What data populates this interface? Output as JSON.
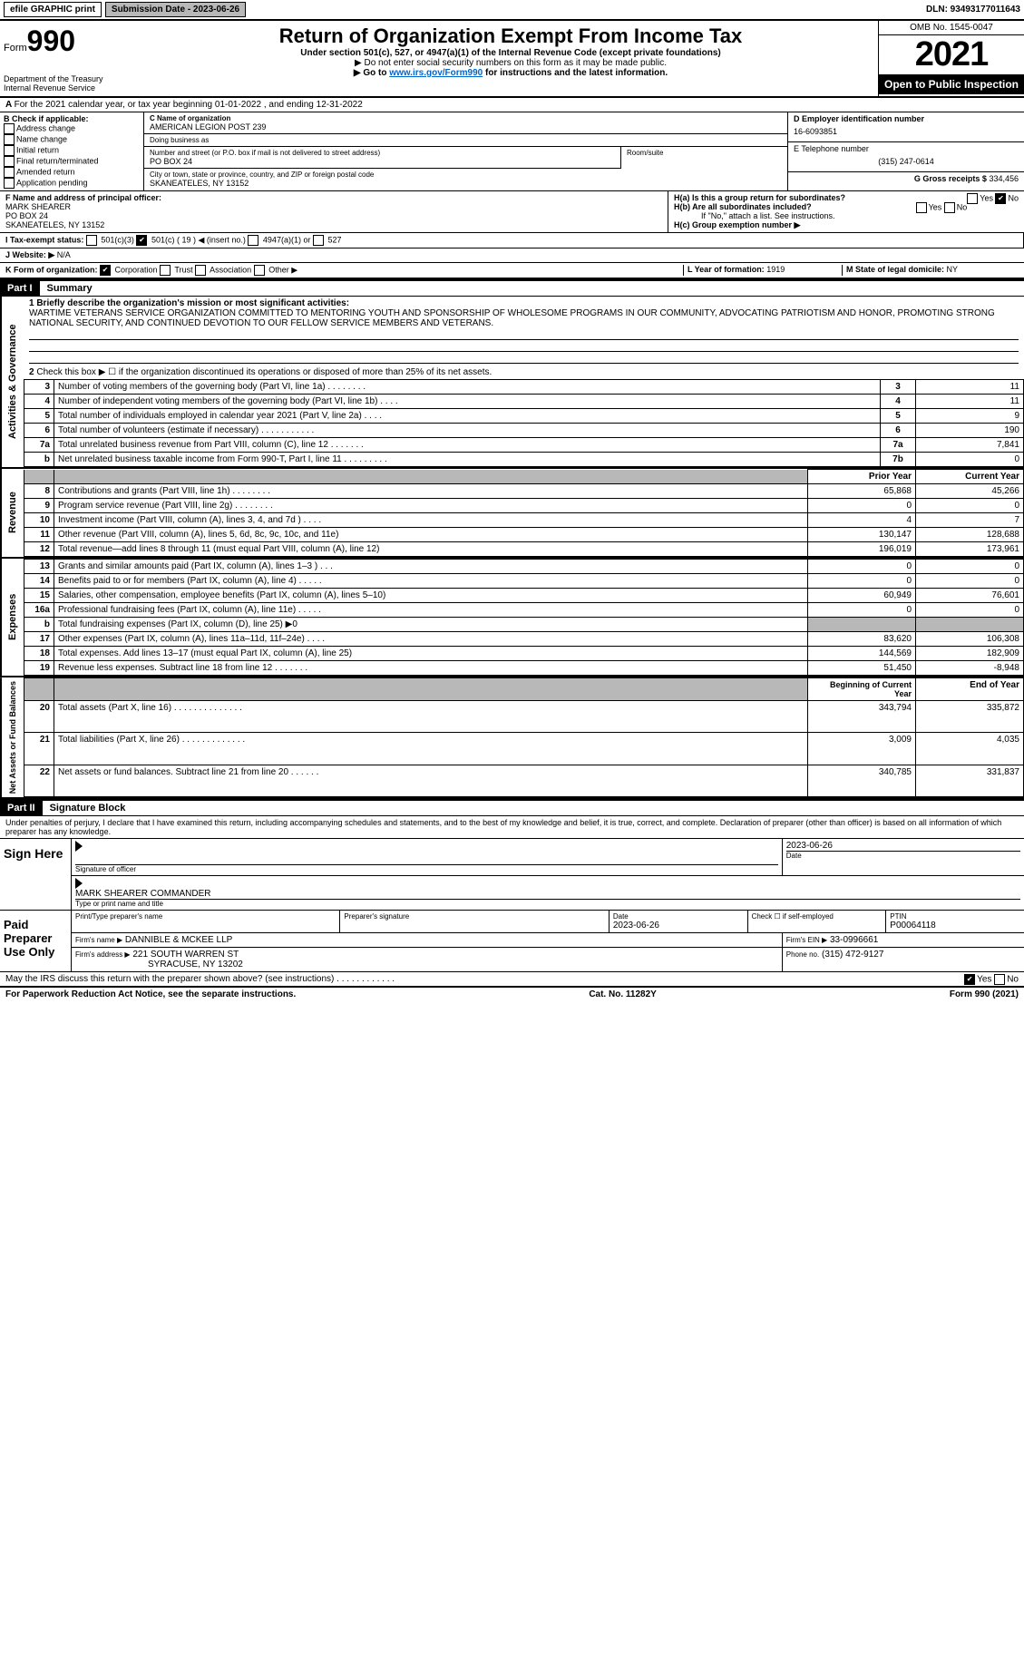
{
  "top_bar": {
    "efile": "efile GRAPHIC print",
    "submission_label": "Submission Date - 2023-06-26",
    "dln": "DLN: 93493177011643"
  },
  "header": {
    "form_label": "Form",
    "form_number": "990",
    "dept": "Department of the Treasury",
    "irs": "Internal Revenue Service",
    "title": "Return of Organization Exempt From Income Tax",
    "subtitle": "Under section 501(c), 527, or 4947(a)(1) of the Internal Revenue Code (except private foundations)",
    "note1": "▶ Do not enter social security numbers on this form as it may be made public.",
    "note2_prefix": "▶ Go to ",
    "note2_link": "www.irs.gov/Form990",
    "note2_suffix": " for instructions and the latest information.",
    "omb": "OMB No. 1545-0047",
    "year": "2021",
    "open": "Open to Public Inspection"
  },
  "row_a": "For the 2021 calendar year, or tax year beginning 01-01-2022   , and ending 12-31-2022",
  "section_b": {
    "label": "B Check if applicable:",
    "options": [
      "Address change",
      "Name change",
      "Initial return",
      "Final return/terminated",
      "Amended return",
      "Application pending"
    ]
  },
  "section_c": {
    "name_label": "C Name of organization",
    "name": "AMERICAN LEGION POST 239",
    "dba_label": "Doing business as",
    "dba": "",
    "street_label": "Number and street (or P.O. box if mail is not delivered to street address)",
    "street": "PO BOX 24",
    "room_label": "Room/suite",
    "city_label": "City or town, state or province, country, and ZIP or foreign postal code",
    "city": "SKANEATELES, NY  13152"
  },
  "section_d": {
    "label": "D Employer identification number",
    "ein": "16-6093851",
    "phone_label": "E Telephone number",
    "phone": "(315) 247-0614",
    "gross_label": "G Gross receipts $",
    "gross": "334,456"
  },
  "section_f": {
    "label": "F Name and address of principal officer:",
    "name": "MARK SHEARER",
    "street": "PO BOX 24",
    "city": "SKANEATELES, NY  13152"
  },
  "section_h": {
    "ha_label": "H(a) Is this a group return for subordinates?",
    "ha_yes": "Yes",
    "ha_no": "No",
    "hb_label": "H(b) Are all subordinates included?",
    "hb_note": "If \"No,\" attach a list. See instructions.",
    "hc_label": "H(c) Group exemption number ▶"
  },
  "row_i": {
    "label": "I  Tax-exempt status:",
    "opt1": "501(c)(3)",
    "opt2": "501(c) ( 19 ) ◀ (insert no.)",
    "opt3": "4947(a)(1) or",
    "opt4": "527"
  },
  "row_j": {
    "label": "J  Website: ▶",
    "value": "N/A"
  },
  "row_k": {
    "label": "K Form of organization:",
    "opts": [
      "Corporation",
      "Trust",
      "Association",
      "Other ▶"
    ],
    "year_label": "L Year of formation:",
    "year": "1919",
    "state_label": "M State of legal domicile:",
    "state": "NY"
  },
  "part1": {
    "header": "Part I",
    "title": "Summary",
    "q1_label": "1 Briefly describe the organization's mission or most significant activities:",
    "q1_text": "WARTIME VETERANS SERVICE ORGANIZATION COMMITTED TO MENTORING YOUTH AND SPONSORSHIP OF WHOLESOME PROGRAMS IN OUR COMMUNITY, ADVOCATING PATRIOTISM AND HONOR, PROMOTING STRONG NATIONAL SECURITY, AND CONTINUED DEVOTION TO OUR FELLOW SERVICE MEMBERS AND VETERANS.",
    "q2": "Check this box ▶ ☐ if the organization discontinued its operations or disposed of more than 25% of its net assets.",
    "governance_label": "Activities & Governance",
    "revenue_label": "Revenue",
    "expenses_label": "Expenses",
    "netassets_label": "Net Assets or Fund Balances",
    "rows_gov": [
      {
        "n": "3",
        "desc": "Number of voting members of the governing body (Part VI, line 1a)  .    .    .    .    .    .    .    .",
        "box": "3",
        "val": "11"
      },
      {
        "n": "4",
        "desc": "Number of independent voting members of the governing body (Part VI, line 1b)   .    .    .    .",
        "box": "4",
        "val": "11"
      },
      {
        "n": "5",
        "desc": "Total number of individuals employed in calendar year 2021 (Part V, line 2a)   .    .    .    .",
        "box": "5",
        "val": "9"
      },
      {
        "n": "6",
        "desc": "Total number of volunteers (estimate if necessary)   .    .    .    .    .    .    .    .    .    .    .",
        "box": "6",
        "val": "190"
      },
      {
        "n": "7a",
        "desc": "Total unrelated business revenue from Part VIII, column (C), line 12   .    .    .    .    .    .    .",
        "box": "7a",
        "val": "7,841"
      },
      {
        "n": "b",
        "desc": "Net unrelated business taxable income from Form 990-T, Part I, line 11   .    .    .    .    .    .    .    .    .",
        "box": "7b",
        "val": "0"
      }
    ],
    "col_prior": "Prior Year",
    "col_current": "Current Year",
    "rows_rev": [
      {
        "n": "8",
        "desc": "Contributions and grants (Part VIII, line 1h)   .    .    .    .    .    .    .    .",
        "prior": "65,868",
        "cur": "45,266"
      },
      {
        "n": "9",
        "desc": "Program service revenue (Part VIII, line 2g)   .    .    .    .    .    .    .    .",
        "prior": "0",
        "cur": "0"
      },
      {
        "n": "10",
        "desc": "Investment income (Part VIII, column (A), lines 3, 4, and 7d )   .    .    .    .",
        "prior": "4",
        "cur": "7"
      },
      {
        "n": "11",
        "desc": "Other revenue (Part VIII, column (A), lines 5, 6d, 8c, 9c, 10c, and 11e)",
        "prior": "130,147",
        "cur": "128,688"
      },
      {
        "n": "12",
        "desc": "Total revenue—add lines 8 through 11 (must equal Part VIII, column (A), line 12)",
        "prior": "196,019",
        "cur": "173,961"
      }
    ],
    "rows_exp": [
      {
        "n": "13",
        "desc": "Grants and similar amounts paid (Part IX, column (A), lines 1–3 )   .    .    .",
        "prior": "0",
        "cur": "0"
      },
      {
        "n": "14",
        "desc": "Benefits paid to or for members (Part IX, column (A), line 4)   .    .    .    .    .",
        "prior": "0",
        "cur": "0"
      },
      {
        "n": "15",
        "desc": "Salaries, other compensation, employee benefits (Part IX, column (A), lines 5–10)",
        "prior": "60,949",
        "cur": "76,601"
      },
      {
        "n": "16a",
        "desc": "Professional fundraising fees (Part IX, column (A), line 11e)   .    .    .    .    .",
        "prior": "0",
        "cur": "0"
      },
      {
        "n": "b",
        "desc": "Total fundraising expenses (Part IX, column (D), line 25) ▶0",
        "prior": "",
        "cur": "",
        "shaded": true
      },
      {
        "n": "17",
        "desc": "Other expenses (Part IX, column (A), lines 11a–11d, 11f–24e)   .    .    .    .",
        "prior": "83,620",
        "cur": "106,308"
      },
      {
        "n": "18",
        "desc": "Total expenses. Add lines 13–17 (must equal Part IX, column (A), line 25)",
        "prior": "144,569",
        "cur": "182,909"
      },
      {
        "n": "19",
        "desc": "Revenue less expenses. Subtract line 18 from line 12   .    .    .    .    .    .    .",
        "prior": "51,450",
        "cur": "-8,948"
      }
    ],
    "col_begin": "Beginning of Current Year",
    "col_end": "End of Year",
    "rows_net": [
      {
        "n": "20",
        "desc": "Total assets (Part X, line 16)   .    .    .    .    .    .    .    .    .    .    .    .    .    .",
        "prior": "343,794",
        "cur": "335,872"
      },
      {
        "n": "21",
        "desc": "Total liabilities (Part X, line 26)   .    .    .    .    .    .    .    .    .    .    .    .    .",
        "prior": "3,009",
        "cur": "4,035"
      },
      {
        "n": "22",
        "desc": "Net assets or fund balances. Subtract line 21 from line 20   .    .    .    .    .    .",
        "prior": "340,785",
        "cur": "331,837"
      }
    ]
  },
  "part2": {
    "header": "Part II",
    "title": "Signature Block",
    "penalty": "Under penalties of perjury, I declare that I have examined this return, including accompanying schedules and statements, and to the best of my knowledge and belief, it is true, correct, and complete. Declaration of preparer (other than officer) is based on all information of which preparer has any knowledge."
  },
  "sign": {
    "label": "Sign Here",
    "sig_label": "Signature of officer",
    "date": "2023-06-26",
    "date_label": "Date",
    "name": "MARK SHEARER  COMMANDER",
    "name_label": "Type or print name and title"
  },
  "paid": {
    "label": "Paid Preparer Use Only",
    "preparer_name_label": "Print/Type preparer's name",
    "preparer_sig_label": "Preparer's signature",
    "date_label": "Date",
    "date": "2023-06-26",
    "check_label": "Check ☐ if self-employed",
    "ptin_label": "PTIN",
    "ptin": "P00064118",
    "firm_name_label": "Firm's name    ▶",
    "firm_name": "DANNIBLE & MCKEE LLP",
    "firm_ein_label": "Firm's EIN ▶",
    "firm_ein": "33-0996661",
    "firm_addr_label": "Firm's address ▶",
    "firm_addr1": "221 SOUTH WARREN ST",
    "firm_addr2": "SYRACUSE, NY  13202",
    "phone_label": "Phone no.",
    "phone": "(315) 472-9127"
  },
  "discuss": {
    "text": "May the IRS discuss this return with the preparer shown above? (see instructions)   .    .    .    .    .    .    .    .    .    .    .    .",
    "yes": "Yes",
    "no": "No"
  },
  "footer": {
    "left": "For Paperwork Reduction Act Notice, see the separate instructions.",
    "mid": "Cat. No. 11282Y",
    "right": "Form 990 (2021)"
  },
  "colors": {
    "black": "#000000",
    "gray": "#b8b8b8",
    "link": "#0066cc"
  }
}
